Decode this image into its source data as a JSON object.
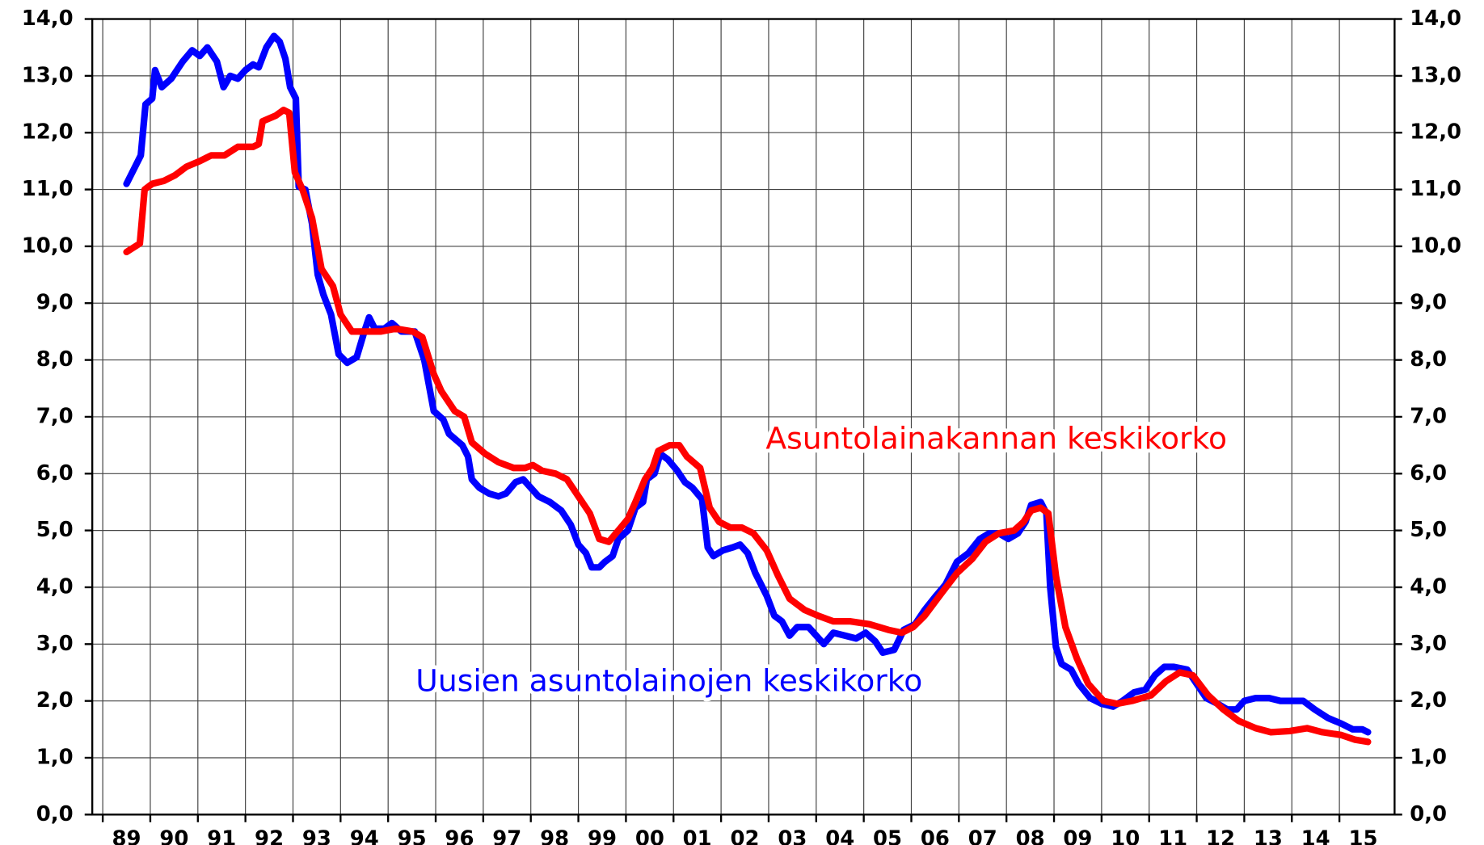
{
  "chart_data": {
    "type": "line",
    "xlim": [
      1988.78,
      2016.16
    ],
    "xticks": [
      {
        "value": 1989,
        "label": "89"
      },
      {
        "value": 1990,
        "label": "90"
      },
      {
        "value": 1991,
        "label": "91"
      },
      {
        "value": 1992,
        "label": "92"
      },
      {
        "value": 1993,
        "label": "93"
      },
      {
        "value": 1994,
        "label": "94"
      },
      {
        "value": 1995,
        "label": "95"
      },
      {
        "value": 1996,
        "label": "96"
      },
      {
        "value": 1997,
        "label": "97"
      },
      {
        "value": 1998,
        "label": "98"
      },
      {
        "value": 1999,
        "label": "99"
      },
      {
        "value": 2000,
        "label": "00"
      },
      {
        "value": 2001,
        "label": "01"
      },
      {
        "value": 2002,
        "label": "02"
      },
      {
        "value": 2003,
        "label": "03"
      },
      {
        "value": 2004,
        "label": "04"
      },
      {
        "value": 2005,
        "label": "05"
      },
      {
        "value": 2006,
        "label": "06"
      },
      {
        "value": 2007,
        "label": "07"
      },
      {
        "value": 2008,
        "label": "08"
      },
      {
        "value": 2009,
        "label": "09"
      },
      {
        "value": 2010,
        "label": "10"
      },
      {
        "value": 2011,
        "label": "11"
      },
      {
        "value": 2012,
        "label": "12"
      },
      {
        "value": 2013,
        "label": "13"
      },
      {
        "value": 2014,
        "label": "14"
      },
      {
        "value": 2015,
        "label": "15"
      }
    ],
    "ylim": [
      0,
      14
    ],
    "yticks": [
      {
        "value": 0,
        "label": "0,0"
      },
      {
        "value": 1,
        "label": "1,0"
      },
      {
        "value": 2,
        "label": "2,0"
      },
      {
        "value": 3,
        "label": "3,0"
      },
      {
        "value": 4,
        "label": "4,0"
      },
      {
        "value": 5,
        "label": "5,0"
      },
      {
        "value": 6,
        "label": "6,0"
      },
      {
        "value": 7,
        "label": "7,0"
      },
      {
        "value": 8,
        "label": "8,0"
      },
      {
        "value": 9,
        "label": "9,0"
      },
      {
        "value": 10,
        "label": "10,0"
      },
      {
        "value": 11,
        "label": "11,0"
      },
      {
        "value": 12,
        "label": "12,0"
      },
      {
        "value": 13,
        "label": "13,0"
      },
      {
        "value": 14,
        "label": "14,0"
      }
    ],
    "y2lim": [
      0,
      14
    ],
    "y2ticks": [
      {
        "value": 0,
        "label": "0,0"
      },
      {
        "value": 1,
        "label": "1,0"
      },
      {
        "value": 2,
        "label": "2,0"
      },
      {
        "value": 3,
        "label": "3,0"
      },
      {
        "value": 4,
        "label": "4,0"
      },
      {
        "value": 5,
        "label": "5,0"
      },
      {
        "value": 6,
        "label": "6,0"
      },
      {
        "value": 7,
        "label": "7,0"
      },
      {
        "value": 8,
        "label": "8,0"
      },
      {
        "value": 9,
        "label": "9,0"
      },
      {
        "value": 10,
        "label": "10,0"
      },
      {
        "value": 11,
        "label": "11,0"
      },
      {
        "value": 12,
        "label": "12,0"
      },
      {
        "value": 13,
        "label": "13,0"
      },
      {
        "value": 14,
        "label": "14,0"
      }
    ],
    "grid": true,
    "series": [
      {
        "name": "Asuntolainakannan keskikorko",
        "color": "#ff0000",
        "x": [
          1989.5,
          1989.78,
          1989.88,
          1990.04,
          1990.28,
          1990.52,
          1990.76,
          1991.04,
          1991.28,
          1991.56,
          1991.84,
          1992.16,
          1992.28,
          1992.36,
          1992.64,
          1992.8,
          1992.92,
          1993.04,
          1993.2,
          1993.4,
          1993.6,
          1993.84,
          1994.0,
          1994.24,
          1994.52,
          1994.84,
          1995.16,
          1995.52,
          1995.72,
          1995.96,
          1996.12,
          1996.4,
          1996.6,
          1996.76,
          1997.04,
          1997.32,
          1997.64,
          1997.88,
          1998.04,
          1998.24,
          1998.52,
          1998.76,
          1999.0,
          1999.24,
          1999.44,
          1999.64,
          1999.84,
          2000.04,
          2000.2,
          2000.4,
          2000.56,
          2000.68,
          2000.92,
          2001.12,
          2001.28,
          2001.56,
          2001.76,
          2001.96,
          2002.2,
          2002.44,
          2002.68,
          2002.96,
          2003.2,
          2003.44,
          2003.76,
          2004.04,
          2004.36,
          2004.72,
          2005.12,
          2005.52,
          2005.8,
          2006.04,
          2006.28,
          2006.64,
          2006.96,
          2007.28,
          2007.56,
          2007.84,
          2008.16,
          2008.36,
          2008.52,
          2008.72,
          2008.88,
          2009.04,
          2009.24,
          2009.48,
          2009.72,
          2010.04,
          2010.32,
          2010.64,
          2011.04,
          2011.36,
          2011.64,
          2011.92,
          2012.24,
          2012.56,
          2012.88,
          2013.24,
          2013.56,
          2013.96,
          2014.32,
          2014.64,
          2015.04,
          2015.32,
          2015.6
        ],
        "values": [
          9.9,
          10.05,
          11.0,
          11.1,
          11.15,
          11.25,
          11.4,
          11.5,
          11.6,
          11.6,
          11.75,
          11.75,
          11.8,
          12.2,
          12.3,
          12.4,
          12.35,
          11.3,
          11.0,
          10.5,
          9.6,
          9.3,
          8.8,
          8.5,
          8.5,
          8.5,
          8.55,
          8.5,
          8.4,
          7.75,
          7.45,
          7.1,
          7.0,
          6.55,
          6.35,
          6.2,
          6.1,
          6.1,
          6.15,
          6.05,
          6.0,
          5.9,
          5.6,
          5.3,
          4.85,
          4.8,
          5.0,
          5.2,
          5.5,
          5.9,
          6.1,
          6.4,
          6.5,
          6.5,
          6.3,
          6.1,
          5.4,
          5.15,
          5.05,
          5.05,
          4.95,
          4.65,
          4.2,
          3.8,
          3.6,
          3.5,
          3.4,
          3.4,
          3.35,
          3.25,
          3.2,
          3.3,
          3.5,
          3.9,
          4.25,
          4.5,
          4.8,
          4.95,
          5.0,
          5.15,
          5.35,
          5.4,
          5.3,
          4.2,
          3.3,
          2.75,
          2.3,
          2.0,
          1.95,
          2.0,
          2.1,
          2.35,
          2.5,
          2.45,
          2.1,
          1.85,
          1.65,
          1.52,
          1.45,
          1.47,
          1.52,
          1.45,
          1.4,
          1.32,
          1.28
        ]
      },
      {
        "name": "Uusien asuntolainojen keskikorko",
        "color": "#0000ff",
        "x": [
          1989.5,
          1989.8,
          1989.9,
          1990.04,
          1990.1,
          1990.24,
          1990.44,
          1990.68,
          1990.88,
          1991.04,
          1991.2,
          1991.4,
          1991.54,
          1991.68,
          1991.84,
          1992.0,
          1992.16,
          1992.28,
          1992.44,
          1992.6,
          1992.72,
          1992.84,
          1992.94,
          1993.06,
          1993.12,
          1993.26,
          1993.4,
          1993.52,
          1993.64,
          1993.8,
          1993.96,
          1994.14,
          1994.34,
          1994.5,
          1994.6,
          1994.72,
          1994.92,
          1995.08,
          1995.28,
          1995.56,
          1995.76,
          1995.96,
          1996.16,
          1996.28,
          1996.56,
          1996.68,
          1996.76,
          1996.92,
          1997.12,
          1997.32,
          1997.48,
          1997.68,
          1997.84,
          1998.0,
          1998.16,
          1998.4,
          1998.64,
          1998.84,
          1999.0,
          1999.16,
          1999.28,
          1999.44,
          1999.56,
          1999.72,
          1999.84,
          2000.04,
          2000.2,
          2000.36,
          2000.44,
          2000.6,
          2000.72,
          2000.88,
          2001.08,
          2001.24,
          2001.4,
          2001.6,
          2001.72,
          2001.84,
          2002.04,
          2002.24,
          2002.4,
          2002.56,
          2002.72,
          2002.96,
          2003.12,
          2003.28,
          2003.44,
          2003.6,
          2003.84,
          2004.0,
          2004.16,
          2004.36,
          2004.6,
          2004.84,
          2005.04,
          2005.24,
          2005.4,
          2005.64,
          2005.84,
          2006.08,
          2006.28,
          2006.52,
          2006.72,
          2006.96,
          2007.2,
          2007.44,
          2007.64,
          2007.84,
          2008.04,
          2008.24,
          2008.4,
          2008.52,
          2008.72,
          2008.84,
          2008.92,
          2009.04,
          2009.16,
          2009.36,
          2009.52,
          2009.76,
          2010.0,
          2010.24,
          2010.44,
          2010.68,
          2010.92,
          2011.12,
          2011.32,
          2011.52,
          2011.8,
          2012.0,
          2012.2,
          2012.44,
          2012.64,
          2012.84,
          2013.0,
          2013.24,
          2013.52,
          2013.76,
          2013.96,
          2014.24,
          2014.48,
          2014.76,
          2015.04,
          2015.28,
          2015.48,
          2015.6
        ],
        "values": [
          11.1,
          11.6,
          12.5,
          12.6,
          13.1,
          12.8,
          12.95,
          13.25,
          13.45,
          13.35,
          13.5,
          13.25,
          12.8,
          13.0,
          12.95,
          13.1,
          13.2,
          13.15,
          13.5,
          13.7,
          13.6,
          13.3,
          12.8,
          12.6,
          11.05,
          11.0,
          10.4,
          9.5,
          9.15,
          8.8,
          8.1,
          7.95,
          8.05,
          8.5,
          8.75,
          8.55,
          8.55,
          8.65,
          8.5,
          8.5,
          8.0,
          7.1,
          6.95,
          6.7,
          6.5,
          6.3,
          5.9,
          5.75,
          5.65,
          5.6,
          5.65,
          5.85,
          5.9,
          5.75,
          5.6,
          5.5,
          5.35,
          5.1,
          4.75,
          4.6,
          4.35,
          4.35,
          4.45,
          4.55,
          4.85,
          5.0,
          5.4,
          5.5,
          5.9,
          6.0,
          6.35,
          6.25,
          6.05,
          5.85,
          5.75,
          5.55,
          4.7,
          4.55,
          4.65,
          4.7,
          4.75,
          4.6,
          4.25,
          3.85,
          3.5,
          3.4,
          3.15,
          3.3,
          3.3,
          3.15,
          3.0,
          3.2,
          3.15,
          3.1,
          3.2,
          3.05,
          2.85,
          2.9,
          3.25,
          3.35,
          3.6,
          3.85,
          4.05,
          4.45,
          4.6,
          4.85,
          4.95,
          4.95,
          4.85,
          4.95,
          5.15,
          5.45,
          5.5,
          5.3,
          4.0,
          2.95,
          2.65,
          2.55,
          2.3,
          2.05,
          1.95,
          1.9,
          2.0,
          2.15,
          2.2,
          2.45,
          2.6,
          2.6,
          2.55,
          2.3,
          2.05,
          1.95,
          1.85,
          1.85,
          2.0,
          2.05,
          2.05,
          2.0,
          2.0,
          2.0,
          1.85,
          1.7,
          1.6,
          1.5,
          1.5,
          1.45
        ]
      }
    ]
  }
}
